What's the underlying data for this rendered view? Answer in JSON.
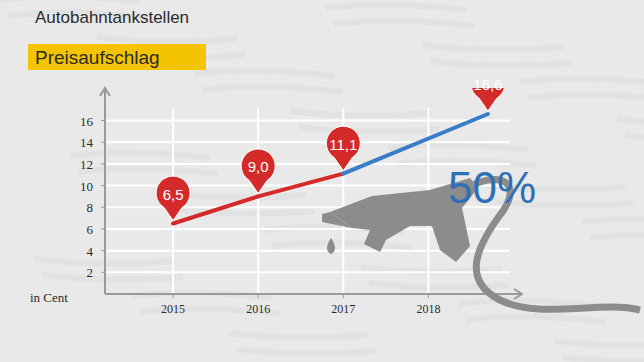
{
  "chart_data": {
    "type": "line",
    "title": "Autobahntankstellen",
    "subtitle": "Preisaufschlag",
    "ylabel": "in Cent",
    "annotation": "50%",
    "x": [
      2015,
      2016,
      2017,
      2018.7
    ],
    "values": [
      6.5,
      9.0,
      11.1,
      16.6
    ],
    "value_labels": [
      "6,5",
      "9,0",
      "11,1",
      "16,6"
    ],
    "color": "#d42a2a",
    "colors": [
      "#d42a2a",
      "#d42a2a",
      "#d42a2a",
      "#3a7cc8"
    ],
    "marker": "pin",
    "data_labels": true,
    "xlim": [
      2014.2,
      2019.1
    ],
    "xticks": [
      2015,
      2016,
      2017,
      2018
    ],
    "ylim": [
      0,
      19
    ],
    "yticks": [
      2,
      4,
      6,
      8,
      10,
      12,
      14,
      16
    ],
    "grid": true
  }
}
